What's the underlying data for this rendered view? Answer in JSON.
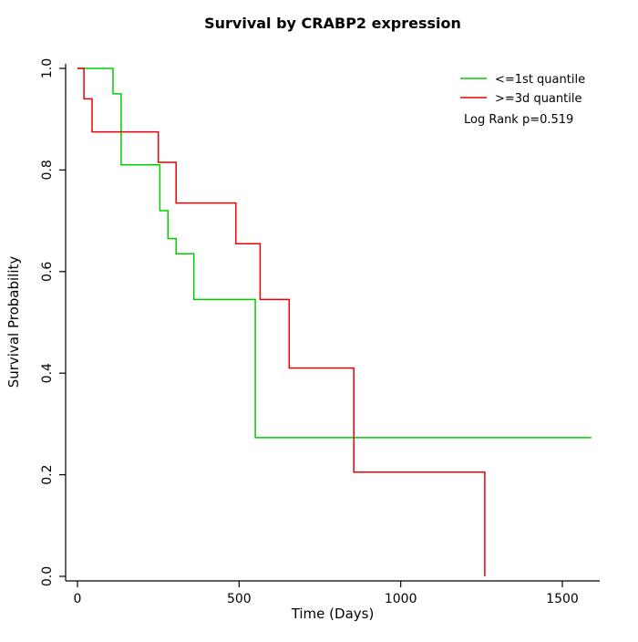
{
  "chart_data": {
    "type": "line",
    "subtype": "kaplan-meier-step",
    "title": "Survival by CRABP2 expression",
    "xlabel": "Time (Days)",
    "ylabel": "Survival Probability",
    "xlim": [
      0,
      1600
    ],
    "ylim": [
      0.0,
      1.0
    ],
    "x_ticks": [
      0,
      500,
      1000,
      1500
    ],
    "y_ticks": [
      "0.0",
      "0.2",
      "0.4",
      "0.6",
      "0.8",
      "1.0"
    ],
    "grid": false,
    "legend_position": "top-right-inside",
    "annotation": "Log Rank p=0.519",
    "axis_color": "#000000",
    "series": [
      {
        "name": "<=1st quantile",
        "color": "#00CD00",
        "step": "post",
        "times": [
          0,
          110,
          135,
          255,
          280,
          305,
          360,
          550
        ],
        "surv": [
          1.0,
          0.95,
          0.81,
          0.72,
          0.665,
          0.635,
          0.545,
          0.273
        ],
        "end_time": 1590
      },
      {
        "name": ">=3d quantile",
        "color": "#EE0000",
        "step": "post",
        "times": [
          0,
          20,
          45,
          250,
          305,
          490,
          565,
          655,
          855,
          1260
        ],
        "surv": [
          1.0,
          0.94,
          0.875,
          0.815,
          0.735,
          0.655,
          0.545,
          0.41,
          0.205,
          0.0
        ],
        "end_time": null
      }
    ]
  }
}
